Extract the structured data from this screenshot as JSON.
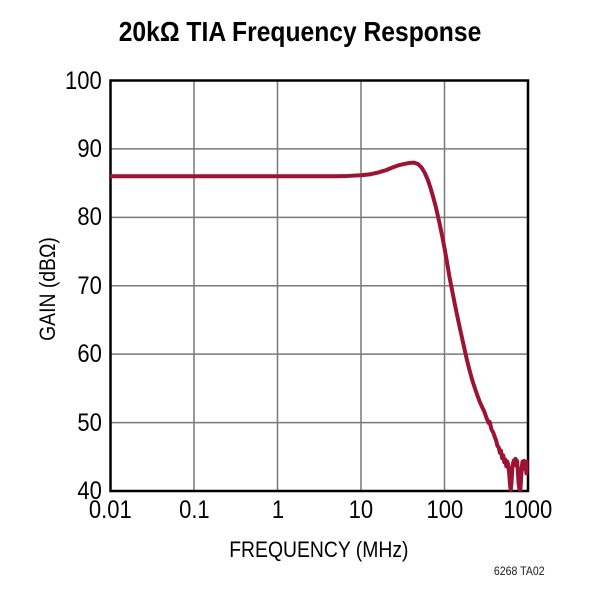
{
  "figure_note": "6268 TA02",
  "chart_data": {
    "type": "line",
    "title": "20kΩ TIA Frequency Response",
    "xlabel": "FREQUENCY (MHz)",
    "ylabel": "GAIN (dBΩ)",
    "x_scale": "log",
    "y_scale": "linear",
    "xlim": [
      0.01,
      1000
    ],
    "ylim": [
      40,
      100
    ],
    "x_ticks": [
      0.01,
      0.1,
      1,
      10,
      100,
      1000
    ],
    "x_tick_labels": [
      "0.01",
      "0.1",
      "1",
      "10",
      "100",
      "1000"
    ],
    "y_ticks": [
      40,
      50,
      60,
      70,
      80,
      90,
      100
    ],
    "y_tick_labels": [
      "40",
      "50",
      "60",
      "70",
      "80",
      "90",
      "100"
    ],
    "grid": true,
    "legend": "none",
    "colors": {
      "background": "#FFFFFF",
      "grid": "#787878",
      "frame": "#000000",
      "text": "#000000",
      "trace": "#9C1434"
    },
    "series": [
      {
        "name": "Gain",
        "color": "#9C1434",
        "points": [
          [
            0.01,
            86
          ],
          [
            0.02,
            86
          ],
          [
            0.05,
            86
          ],
          [
            0.1,
            86
          ],
          [
            0.2,
            86
          ],
          [
            0.5,
            86
          ],
          [
            1,
            86
          ],
          [
            2,
            86
          ],
          [
            3,
            86
          ],
          [
            5,
            86
          ],
          [
            7,
            86.05
          ],
          [
            10,
            86.15
          ],
          [
            13,
            86.3
          ],
          [
            16,
            86.55
          ],
          [
            20,
            86.9
          ],
          [
            24,
            87.3
          ],
          [
            28,
            87.6
          ],
          [
            33,
            87.8
          ],
          [
            38,
            87.95
          ],
          [
            43,
            88.0
          ],
          [
            48,
            87.8
          ],
          [
            53,
            87.3
          ],
          [
            58,
            86.5
          ],
          [
            63,
            85.5
          ],
          [
            68,
            84.3
          ],
          [
            73,
            83.0
          ],
          [
            78,
            81.7
          ],
          [
            83,
            80.3
          ],
          [
            88,
            78.9
          ],
          [
            94,
            77.2
          ],
          [
            100,
            75.5
          ],
          [
            107,
            73.5
          ],
          [
            115,
            71.2
          ],
          [
            123,
            69.4
          ],
          [
            132,
            67.5
          ],
          [
            141,
            65.8
          ],
          [
            151,
            64.1
          ],
          [
            162,
            62.4
          ],
          [
            174,
            60.7
          ],
          [
            187,
            59.0
          ],
          [
            200,
            57.6
          ],
          [
            215,
            56.2
          ],
          [
            230,
            55.1
          ],
          [
            247,
            54.0
          ],
          [
            265,
            53.0
          ],
          [
            284,
            52.2
          ],
          [
            300,
            51.6
          ],
          [
            320,
            50.6
          ],
          [
            340,
            49.9
          ],
          [
            348,
            50.1
          ],
          [
            365,
            49.0
          ],
          [
            385,
            48.5
          ],
          [
            400,
            47.9
          ],
          [
            415,
            47.4
          ],
          [
            430,
            46.6
          ],
          [
            445,
            46.4
          ],
          [
            460,
            45.6
          ],
          [
            475,
            45.9
          ],
          [
            490,
            44.8
          ],
          [
            505,
            45.2
          ],
          [
            520,
            44.2
          ],
          [
            535,
            44.6
          ],
          [
            550,
            43.6
          ],
          [
            565,
            44.3
          ],
          [
            580,
            43.8
          ],
          [
            595,
            42.6
          ],
          [
            610,
            40.8
          ],
          [
            622,
            40.1
          ],
          [
            635,
            41.3
          ],
          [
            650,
            43.4
          ],
          [
            665,
            44.2
          ],
          [
            680,
            44.5
          ],
          [
            695,
            43.9
          ],
          [
            710,
            44.7
          ],
          [
            725,
            43.7
          ],
          [
            740,
            44.4
          ],
          [
            755,
            43.0
          ],
          [
            770,
            41.2
          ],
          [
            790,
            40.2
          ],
          [
            808,
            40.0
          ],
          [
            825,
            41.6
          ],
          [
            842,
            43.5
          ],
          [
            860,
            44.3
          ],
          [
            878,
            43.5
          ],
          [
            896,
            44.4
          ],
          [
            915,
            43.2
          ],
          [
            935,
            44.1
          ],
          [
            955,
            42.6
          ],
          [
            975,
            44.3
          ],
          [
            1000,
            43.6
          ]
        ]
      }
    ]
  }
}
